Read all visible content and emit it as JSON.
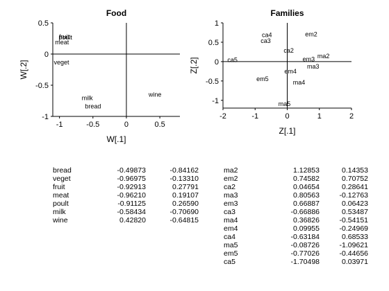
{
  "chart_data": [
    {
      "type": "scatter",
      "title": "Food",
      "xlabel": "W[.1]",
      "ylabel": "W[.2]",
      "xlim": [
        -1.1,
        0.8
      ],
      "ylim": [
        -1.0,
        0.5
      ],
      "xticks": [
        -1,
        -0.5,
        0,
        0.5
      ],
      "yticks": [
        -1,
        -0.5,
        0,
        0.5
      ],
      "points": [
        {
          "label": "bread",
          "x": -0.49873,
          "y": -0.84162
        },
        {
          "label": "veget",
          "x": -0.96975,
          "y": -0.1331
        },
        {
          "label": "fruit",
          "x": -0.92913,
          "y": 0.27791
        },
        {
          "label": "meat",
          "x": -0.9621,
          "y": 0.19107
        },
        {
          "label": "poult",
          "x": -0.91125,
          "y": 0.2659
        },
        {
          "label": "milk",
          "x": -0.58434,
          "y": -0.7069
        },
        {
          "label": "wine",
          "x": 0.4282,
          "y": -0.64815
        }
      ]
    },
    {
      "type": "scatter",
      "title": "Families",
      "xlabel": "Z[.1]",
      "ylabel": "Z[.2]",
      "xlim": [
        -2,
        2
      ],
      "ylim": [
        -1.2,
        1
      ],
      "xticks": [
        -2,
        -1,
        0,
        1,
        2
      ],
      "yticks": [
        -1,
        -0.5,
        0,
        0.5,
        1
      ],
      "points": [
        {
          "label": "ma2",
          "x": 1.12853,
          "y": 0.14353
        },
        {
          "label": "em2",
          "x": 0.74582,
          "y": 0.70752
        },
        {
          "label": "ca2",
          "x": 0.04654,
          "y": 0.28641
        },
        {
          "label": "ma3",
          "x": 0.80563,
          "y": -0.12763
        },
        {
          "label": "em3",
          "x": 0.66887,
          "y": 0.06423
        },
        {
          "label": "ca3",
          "x": -0.66886,
          "y": 0.53487
        },
        {
          "label": "ma4",
          "x": 0.36826,
          "y": -0.54151
        },
        {
          "label": "em4",
          "x": 0.09955,
          "y": -0.24969
        },
        {
          "label": "ca4",
          "x": -0.63184,
          "y": 0.68533
        },
        {
          "label": "ma5",
          "x": -0.08726,
          "y": -1.09621
        },
        {
          "label": "em5",
          "x": -0.77026,
          "y": -0.44656
        },
        {
          "label": "ca5",
          "x": -1.70498,
          "y": 0.03971
        }
      ]
    }
  ],
  "tables": {
    "food": [
      {
        "label": "bread",
        "v1": "-0.49873",
        "v2": "-0.84162"
      },
      {
        "label": "veget",
        "v1": "-0.96975",
        "v2": "-0.13310"
      },
      {
        "label": "fruit",
        "v1": "-0.92913",
        "v2": "0.27791"
      },
      {
        "label": "meat",
        "v1": "-0.96210",
        "v2": "0.19107"
      },
      {
        "label": "poult",
        "v1": "-0.91125",
        "v2": "0.26590"
      },
      {
        "label": "milk",
        "v1": "-0.58434",
        "v2": "-0.70690"
      },
      {
        "label": "wine",
        "v1": "0.42820",
        "v2": "-0.64815"
      }
    ],
    "families": [
      {
        "label": "ma2",
        "v1": "1.12853",
        "v2": "0.14353"
      },
      {
        "label": "em2",
        "v1": "0.74582",
        "v2": "0.70752"
      },
      {
        "label": "ca2",
        "v1": "0.04654",
        "v2": "0.28641"
      },
      {
        "label": "ma3",
        "v1": "0.80563",
        "v2": "-0.12763"
      },
      {
        "label": "em3",
        "v1": "0.66887",
        "v2": "0.06423"
      },
      {
        "label": "ca3",
        "v1": "-0.66886",
        "v2": "0.53487"
      },
      {
        "label": "ma4",
        "v1": "0.36826",
        "v2": "-0.54151"
      },
      {
        "label": "em4",
        "v1": "0.09955",
        "v2": "-0.24969"
      },
      {
        "label": "ca4",
        "v1": "-0.63184",
        "v2": "0.68533"
      },
      {
        "label": "ma5",
        "v1": "-0.08726",
        "v2": "-1.09621"
      },
      {
        "label": "em5",
        "v1": "-0.77026",
        "v2": "-0.44656"
      },
      {
        "label": "ca5",
        "v1": "-1.70498",
        "v2": "0.03971"
      }
    ]
  }
}
